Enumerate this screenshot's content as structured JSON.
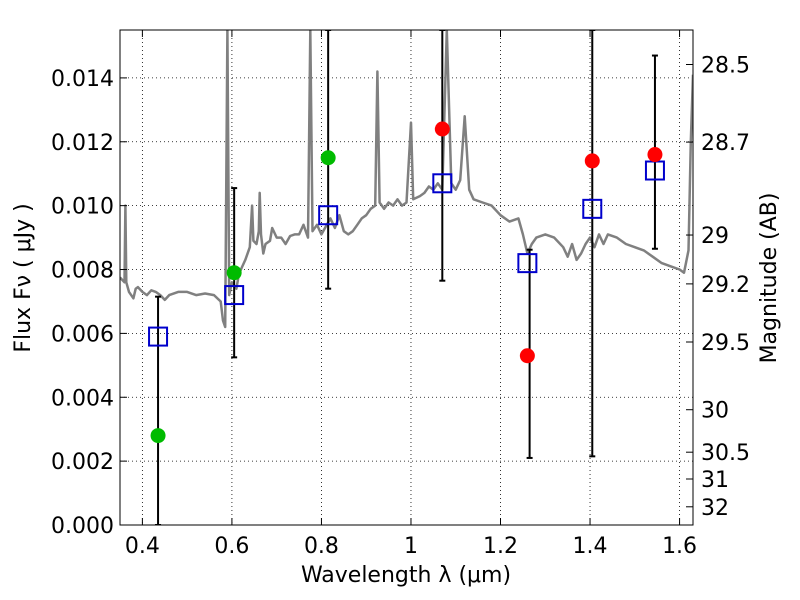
{
  "chart_data": {
    "type": "scatter",
    "xlabel": "Wavelength  λ (μm)",
    "ylabel": "Flux  Fν  ( μJy )",
    "ylabel_right": "Magnitude (AB)",
    "xlim": [
      0.35,
      1.63
    ],
    "ylim": [
      0.0,
      0.0155
    ],
    "grid": true,
    "x_ticks": [
      0.4,
      0.6,
      0.8,
      1.0,
      1.2,
      1.4,
      1.6
    ],
    "x_tick_labels": [
      "0.4",
      "0.6",
      "0.8",
      "1",
      "1.2",
      "1.4",
      "1.6"
    ],
    "y_ticks": [
      0.0,
      0.002,
      0.004,
      0.006,
      0.008,
      0.01,
      0.012,
      0.014
    ],
    "y_tick_labels": [
      "0.000",
      "0.002",
      "0.004",
      "0.006",
      "0.008",
      "0.010",
      "0.012",
      "0.014"
    ],
    "right_ticks": [
      {
        "flux": 0.01442,
        "label": "28.5"
      },
      {
        "flux": 0.01199,
        "label": "28.7"
      },
      {
        "flux": 0.00908,
        "label": "29"
      },
      {
        "flux": 0.00755,
        "label": "29.2"
      },
      {
        "flux": 0.00573,
        "label": "29.5"
      },
      {
        "flux": 0.00361,
        "label": "30"
      },
      {
        "flux": 0.00228,
        "label": "30.5"
      },
      {
        "flux": 0.00144,
        "label": "31"
      },
      {
        "flux": 0.00057,
        "label": "32"
      }
    ],
    "series": [
      {
        "kind": "model-spectrum",
        "color": "#808080",
        "points": [
          [
            0.35,
            0.00775
          ],
          [
            0.36,
            0.0076
          ],
          [
            0.362,
            0.01
          ],
          [
            0.364,
            0.0076
          ],
          [
            0.37,
            0.0073
          ],
          [
            0.38,
            0.0071
          ],
          [
            0.385,
            0.0074
          ],
          [
            0.39,
            0.00745
          ],
          [
            0.4,
            0.0073
          ],
          [
            0.41,
            0.0072
          ],
          [
            0.42,
            0.00735
          ],
          [
            0.43,
            0.0073
          ],
          [
            0.44,
            0.0072
          ],
          [
            0.45,
            0.00705
          ],
          [
            0.46,
            0.0072
          ],
          [
            0.48,
            0.0073
          ],
          [
            0.5,
            0.0073
          ],
          [
            0.52,
            0.0072
          ],
          [
            0.54,
            0.00725
          ],
          [
            0.56,
            0.0072
          ],
          [
            0.575,
            0.007
          ],
          [
            0.58,
            0.0064
          ],
          [
            0.585,
            0.0062
          ],
          [
            0.59,
            0.0155
          ],
          [
            0.594,
            0.0072
          ],
          [
            0.6,
            0.0076
          ],
          [
            0.61,
            0.0074
          ],
          [
            0.615,
            0.0078
          ],
          [
            0.62,
            0.008
          ],
          [
            0.63,
            0.0083
          ],
          [
            0.64,
            0.0087
          ],
          [
            0.645,
            0.01
          ],
          [
            0.648,
            0.0089
          ],
          [
            0.655,
            0.0088
          ],
          [
            0.66,
            0.0092
          ],
          [
            0.662,
            0.0104
          ],
          [
            0.665,
            0.0091
          ],
          [
            0.67,
            0.0085
          ],
          [
            0.675,
            0.0088
          ],
          [
            0.685,
            0.0089
          ],
          [
            0.69,
            0.0093
          ],
          [
            0.7,
            0.009
          ],
          [
            0.71,
            0.009
          ],
          [
            0.72,
            0.0088
          ],
          [
            0.73,
            0.00905
          ],
          [
            0.74,
            0.0091
          ],
          [
            0.75,
            0.0091
          ],
          [
            0.76,
            0.0094
          ],
          [
            0.77,
            0.009
          ],
          [
            0.775,
            0.0155
          ],
          [
            0.78,
            0.0092
          ],
          [
            0.79,
            0.0094
          ],
          [
            0.8,
            0.0091
          ],
          [
            0.82,
            0.0096
          ],
          [
            0.83,
            0.0093
          ],
          [
            0.84,
            0.0097
          ],
          [
            0.85,
            0.0092
          ],
          [
            0.86,
            0.0091
          ],
          [
            0.87,
            0.0092
          ],
          [
            0.88,
            0.0094
          ],
          [
            0.89,
            0.0096
          ],
          [
            0.9,
            0.0097
          ],
          [
            0.91,
            0.0099
          ],
          [
            0.92,
            0.01
          ],
          [
            0.925,
            0.0142
          ],
          [
            0.93,
            0.0101
          ],
          [
            0.94,
            0.0099
          ],
          [
            0.95,
            0.0101
          ],
          [
            0.96,
            0.01
          ],
          [
            0.97,
            0.0102
          ],
          [
            0.98,
            0.01
          ],
          [
            0.99,
            0.0101
          ],
          [
            1.0,
            0.0126
          ],
          [
            1.005,
            0.0102
          ],
          [
            1.02,
            0.0103
          ],
          [
            1.03,
            0.0104
          ],
          [
            1.04,
            0.0106
          ],
          [
            1.05,
            0.0105
          ],
          [
            1.06,
            0.0107
          ],
          [
            1.07,
            0.0105
          ],
          [
            1.08,
            0.0155
          ],
          [
            1.09,
            0.0107
          ],
          [
            1.1,
            0.0105
          ],
          [
            1.11,
            0.0108
          ],
          [
            1.12,
            0.0128
          ],
          [
            1.13,
            0.0105
          ],
          [
            1.14,
            0.0102
          ],
          [
            1.16,
            0.0101
          ],
          [
            1.18,
            0.01
          ],
          [
            1.2,
            0.0097
          ],
          [
            1.22,
            0.0095
          ],
          [
            1.24,
            0.0096
          ],
          [
            1.25,
            0.0091
          ],
          [
            1.26,
            0.0085
          ],
          [
            1.27,
            0.0088
          ],
          [
            1.28,
            0.009
          ],
          [
            1.3,
            0.0091
          ],
          [
            1.32,
            0.009
          ],
          [
            1.34,
            0.0087
          ],
          [
            1.35,
            0.0084
          ],
          [
            1.36,
            0.0088
          ],
          [
            1.37,
            0.0083
          ],
          [
            1.38,
            0.0085
          ],
          [
            1.39,
            0.0088
          ],
          [
            1.4,
            0.009
          ],
          [
            1.41,
            0.0087
          ],
          [
            1.42,
            0.0091
          ],
          [
            1.43,
            0.0088
          ],
          [
            1.44,
            0.0091
          ],
          [
            1.46,
            0.009
          ],
          [
            1.48,
            0.0088
          ],
          [
            1.5,
            0.0087
          ],
          [
            1.52,
            0.0086
          ],
          [
            1.54,
            0.0084
          ],
          [
            1.56,
            0.0082
          ],
          [
            1.58,
            0.0081
          ],
          [
            1.6,
            0.008
          ],
          [
            1.61,
            0.0079
          ],
          [
            1.62,
            0.0086
          ],
          [
            1.625,
            0.012
          ],
          [
            1.63,
            0.0141
          ]
        ]
      },
      {
        "kind": "errorbars",
        "color": "#000000",
        "points": [
          {
            "x": 0.435,
            "low": 0.0,
            "high": 0.00715
          },
          {
            "x": 0.605,
            "low": 0.00525,
            "high": 0.01055
          },
          {
            "x": 0.815,
            "low": 0.0074,
            "high": 0.0155
          },
          {
            "x": 1.07,
            "low": 0.00765,
            "high": 0.0155
          },
          {
            "x": 1.265,
            "low": 0.0021,
            "high": 0.00862
          },
          {
            "x": 1.405,
            "low": 0.00215,
            "high": 0.0155
          },
          {
            "x": 1.545,
            "low": 0.00865,
            "high": 0.0147
          }
        ]
      },
      {
        "kind": "open-squares",
        "color": "#0000cc",
        "points": [
          [
            0.435,
            0.0059
          ],
          [
            0.605,
            0.0072
          ],
          [
            0.815,
            0.0097
          ],
          [
            1.07,
            0.0107
          ],
          [
            1.26,
            0.0082
          ],
          [
            1.405,
            0.0099
          ],
          [
            1.545,
            0.0111
          ]
        ]
      },
      {
        "kind": "filled-circles",
        "color": "#00bb00",
        "points": [
          [
            0.435,
            0.0028
          ],
          [
            0.605,
            0.0079
          ],
          [
            0.815,
            0.0115
          ]
        ]
      },
      {
        "kind": "filled-circles",
        "color": "#ff0000",
        "points": [
          [
            1.07,
            0.0124
          ],
          [
            1.26,
            0.0053
          ],
          [
            1.405,
            0.0114
          ],
          [
            1.545,
            0.0116
          ]
        ]
      }
    ]
  }
}
